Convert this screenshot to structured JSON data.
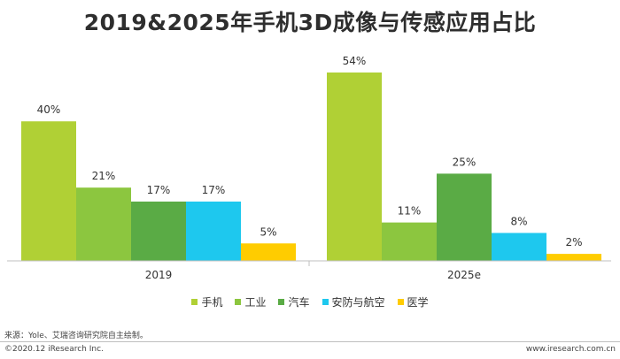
{
  "chart_data": {
    "type": "bar",
    "title": "2019&2025年手机3D成像与传感应用占比",
    "categories": [
      "2019",
      "2025e"
    ],
    "series": [
      {
        "name": "手机",
        "color": "#b0d035",
        "values": [
          40,
          54
        ],
        "labels": [
          "40%",
          "54%"
        ]
      },
      {
        "name": "工业",
        "color": "#8cc63f",
        "values": [
          21,
          11
        ],
        "labels": [
          "21%",
          "11%"
        ]
      },
      {
        "name": "汽车",
        "color": "#5aab45",
        "values": [
          17,
          25
        ],
        "labels": [
          "17%",
          "25%"
        ]
      },
      {
        "name": "安防与航空",
        "color": "#1ec8ee",
        "values": [
          17,
          8
        ],
        "labels": [
          "17%",
          "8%"
        ]
      },
      {
        "name": "医学",
        "color": "#ffcc00",
        "values": [
          5,
          2
        ],
        "labels": [
          "5%",
          "2%"
        ]
      }
    ],
    "ylim": [
      0,
      54
    ],
    "xlabel": "",
    "ylabel": "",
    "legend_position": "bottom-center"
  },
  "footer": {
    "source": "来源：Yole、艾瑞咨询研究院自主绘制。",
    "copyright": "©2020.12 iResearch Inc.",
    "website": "www.iresearch.com.cn"
  }
}
